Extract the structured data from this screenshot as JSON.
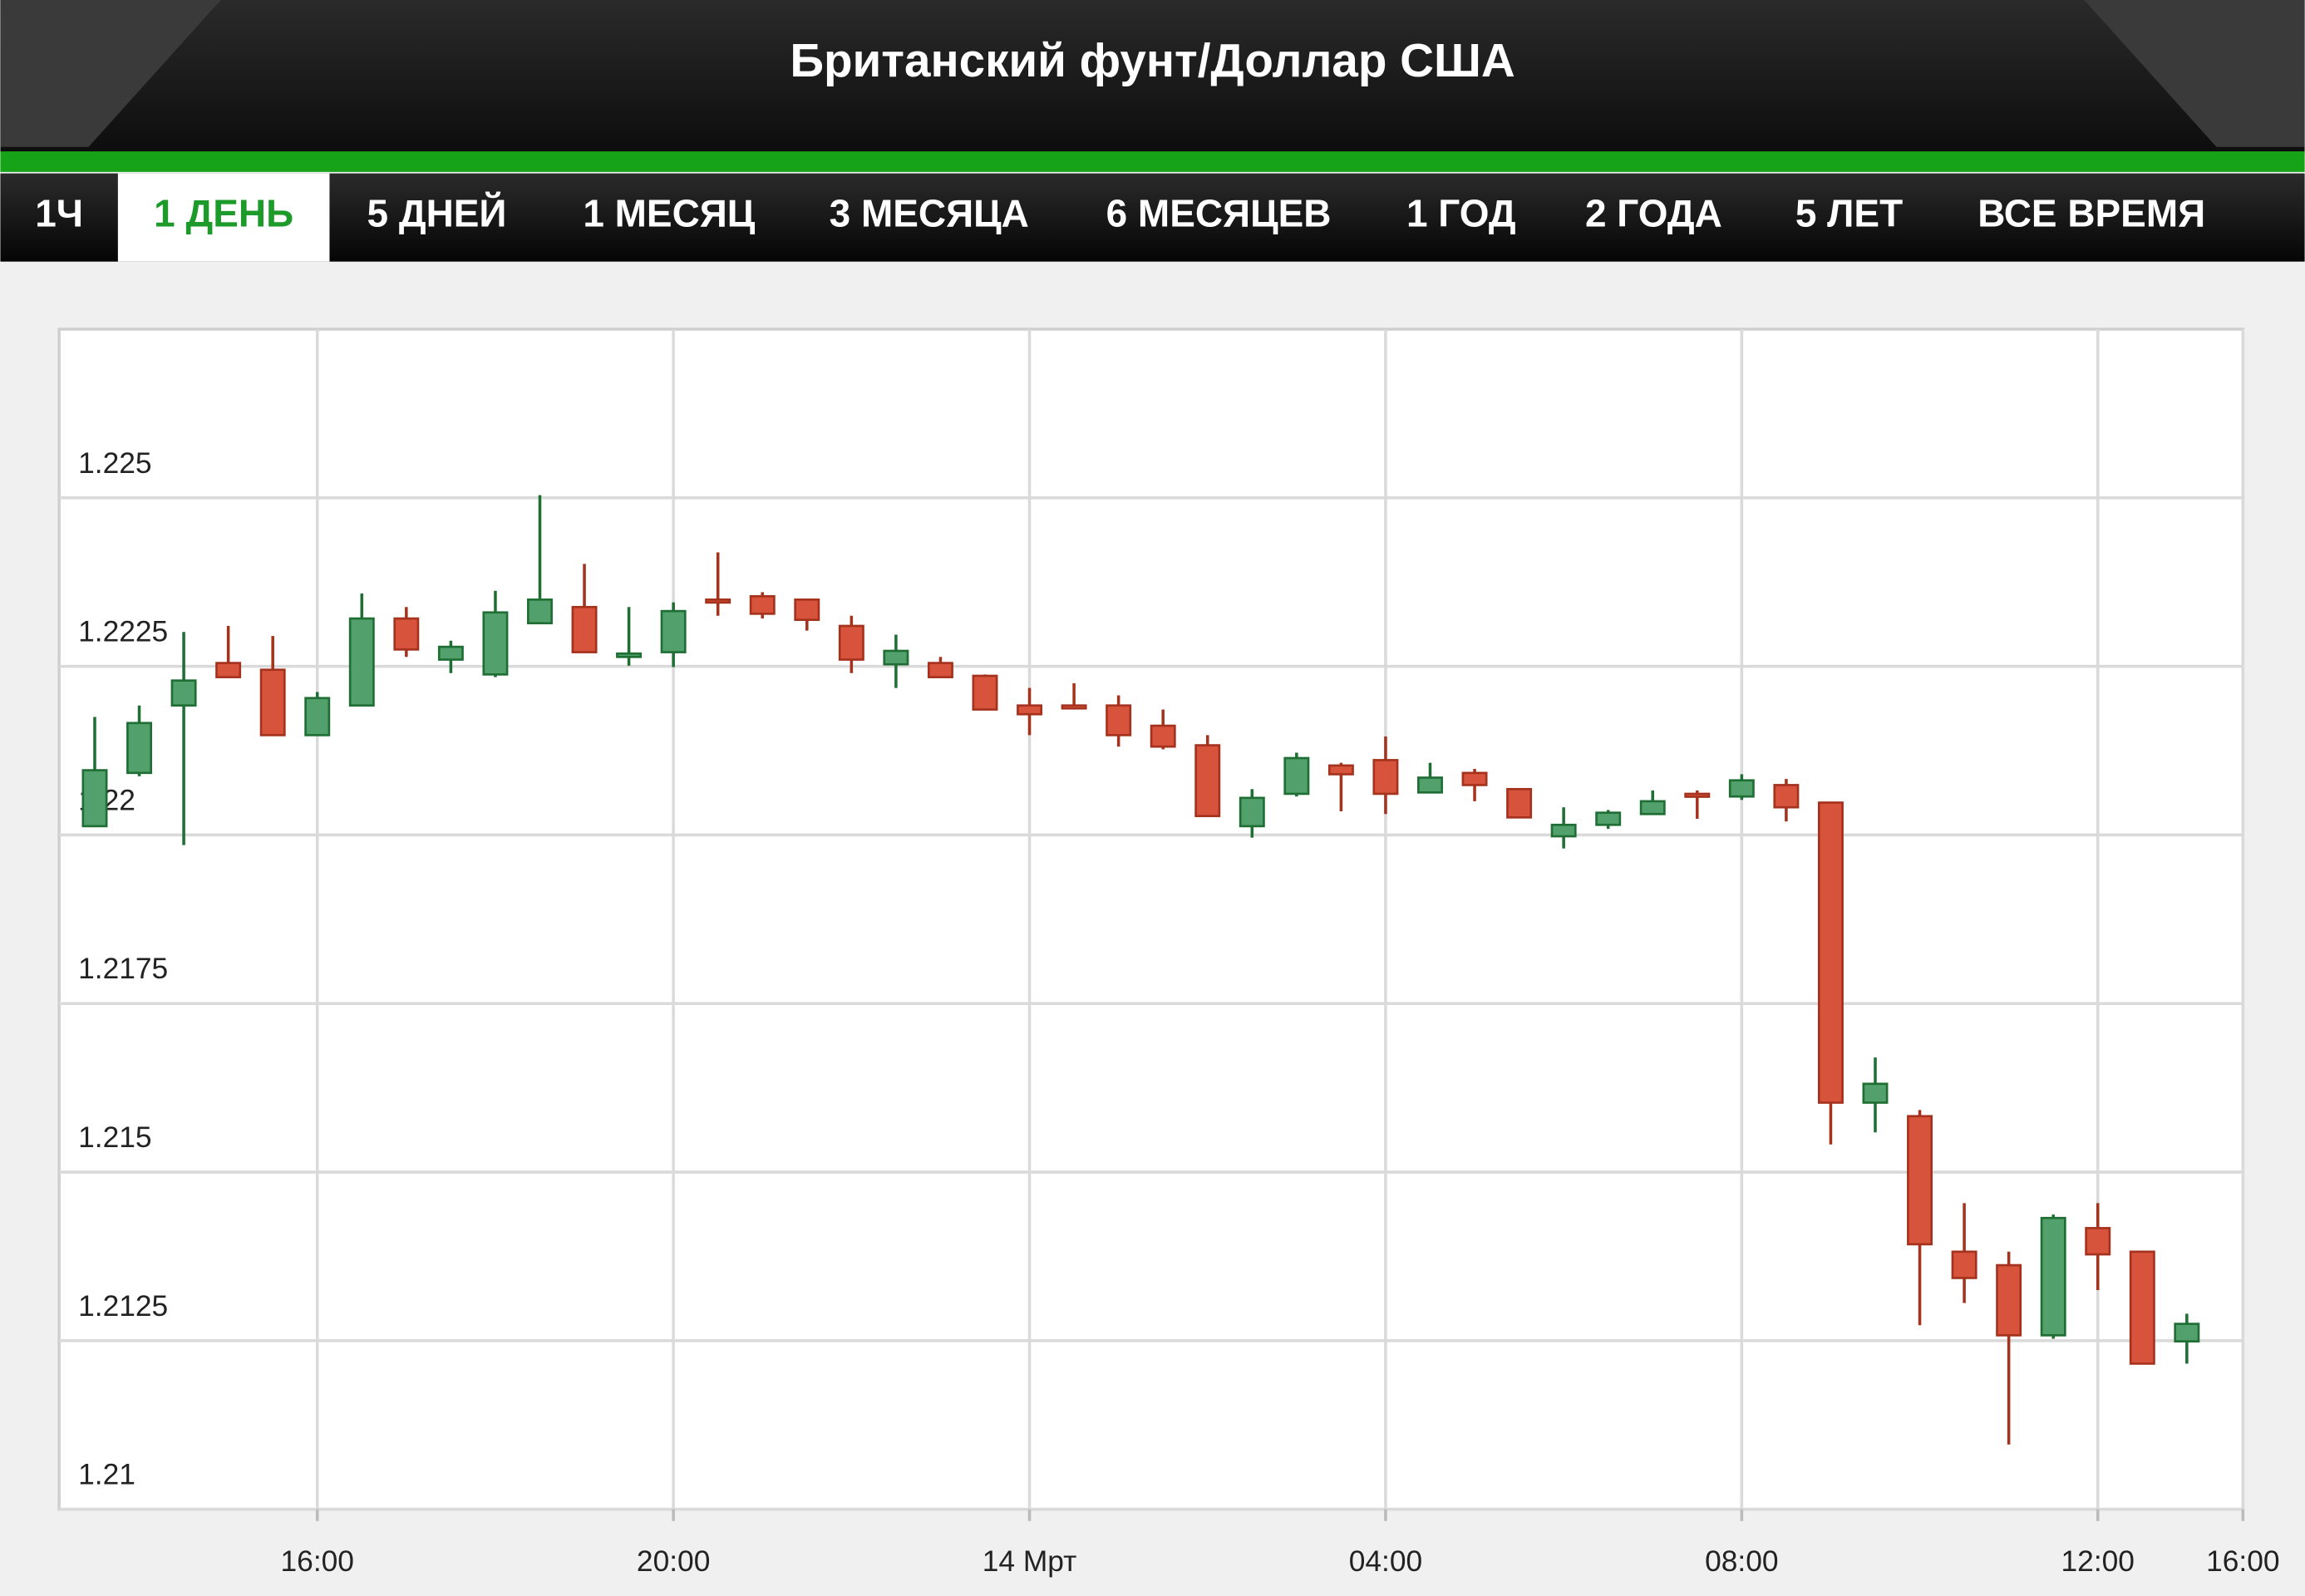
{
  "header": {
    "title": "Британский фунт/Доллар США"
  },
  "tabs": [
    "1Ч",
    "1 ДЕНЬ",
    "5 ДНЕЙ",
    "1 МЕСЯЦ",
    "3 МЕСЯЦА",
    "6 МЕСЯЦЕВ",
    "1 ГОД",
    "2 ГОДА",
    "5 ЛЕТ",
    "ВСЕ ВРЕМЯ"
  ],
  "active_tab": 1,
  "chart_data": {
    "type": "candlestick",
    "x": [
      13.5,
      14,
      14.5,
      15,
      15.5,
      16,
      16.5,
      17,
      17.5,
      18,
      18.5,
      19,
      19.5,
      20,
      20.5,
      21,
      21.5,
      22,
      22.5,
      23,
      23.5,
      24,
      24.5,
      25,
      25.5,
      26,
      26.5,
      27,
      27.5,
      28,
      28.5,
      29,
      29.5,
      30,
      30.5,
      31,
      31.5,
      32,
      32.5,
      33,
      33.5,
      34,
      34.5,
      35,
      35.5,
      36,
      36.5,
      37
    ],
    "open": [
      1.22013,
      1.22092,
      1.22192,
      1.22255,
      1.22245,
      1.22148,
      1.22192,
      1.22321,
      1.2226,
      1.22238,
      1.22314,
      1.22338,
      1.22264,
      1.22271,
      1.22349,
      1.22354,
      1.22349,
      1.2231,
      1.22253,
      1.22255,
      1.22236,
      1.22192,
      1.22192,
      1.22192,
      1.22162,
      1.22133,
      1.22013,
      1.22061,
      1.22103,
      1.22111,
      1.22063,
      1.22092,
      1.22068,
      1.21998,
      1.22015,
      1.22031,
      1.22061,
      1.22057,
      1.22074,
      1.22048,
      1.21603,
      1.21583,
      1.21382,
      1.21362,
      1.21258,
      1.21417,
      1.21382,
      1.21249
    ],
    "high": [
      1.22175,
      1.22192,
      1.22301,
      1.2231,
      1.22295,
      1.22212,
      1.22358,
      1.22338,
      1.22288,
      1.22362,
      1.22504,
      1.22402,
      1.22338,
      1.22345,
      1.22419,
      1.2236,
      1.22349,
      1.22325,
      1.22297,
      1.22264,
      1.22238,
      1.22218,
      1.22225,
      1.22207,
      1.22186,
      1.22148,
      1.22068,
      1.22122,
      1.22107,
      1.22146,
      1.22107,
      1.22098,
      1.22068,
      1.22041,
      1.22037,
      1.22066,
      1.22066,
      1.2209,
      1.22083,
      1.22048,
      1.2167,
      1.21592,
      1.21454,
      1.21382,
      1.21437,
      1.21454,
      1.21382,
      1.2129
    ],
    "low": [
      1.22013,
      1.22087,
      1.21985,
      1.22234,
      1.22148,
      1.22148,
      1.22192,
      1.22264,
      1.2224,
      1.22234,
      1.22314,
      1.22271,
      1.22251,
      1.22249,
      1.22325,
      1.22321,
      1.22303,
      1.2224,
      1.22218,
      1.22234,
      1.22186,
      1.22148,
      1.22186,
      1.22131,
      1.22127,
      1.22028,
      1.21996,
      1.22057,
      1.22035,
      1.22031,
      1.22063,
      1.2205,
      1.22026,
      1.2198,
      1.22009,
      1.22031,
      1.22024,
      1.22052,
      1.2202,
      1.21541,
      1.21559,
      1.21273,
      1.21306,
      1.21096,
      1.21253,
      1.21325,
      1.21216,
      1.21216
    ],
    "close": [
      1.22096,
      1.22166,
      1.22229,
      1.22234,
      1.22148,
      1.22203,
      1.22321,
      1.22275,
      1.22279,
      1.2233,
      1.22349,
      1.22271,
      1.22269,
      1.22332,
      1.22345,
      1.22328,
      1.22319,
      1.2226,
      1.22273,
      1.22234,
      1.22186,
      1.22179,
      1.22188,
      1.22148,
      1.22131,
      1.22028,
      1.22055,
      1.22114,
      1.2209,
      1.22061,
      1.22085,
      1.22074,
      1.22026,
      1.22015,
      1.22033,
      1.2205,
      1.22057,
      1.22081,
      1.22041,
      1.21603,
      1.21631,
      1.21393,
      1.21343,
      1.21258,
      1.21432,
      1.21378,
      1.21216,
      1.21275
    ],
    "up_color": "#52a06c",
    "up_edge": "#1f6e34",
    "down_color": "#d8533b",
    "down_edge": "#a5321d",
    "xlim": [
      13.1,
      37.63
    ],
    "xticks": [
      {
        "value": 16,
        "label": "16:00"
      },
      {
        "value": 20,
        "label": "20:00"
      },
      {
        "value": 24,
        "label": "14 Мрт"
      },
      {
        "value": 28,
        "label": "04:00"
      },
      {
        "value": 32,
        "label": "08:00"
      },
      {
        "value": 36,
        "label": "12:00"
      },
      {
        "value": 37.63,
        "label": "16:00"
      }
    ],
    "ylim": [
      1.21,
      1.2275
    ],
    "yticks": [
      1.21,
      1.2125,
      1.215,
      1.2175,
      1.22,
      1.2225,
      1.225
    ],
    "grid": true
  }
}
